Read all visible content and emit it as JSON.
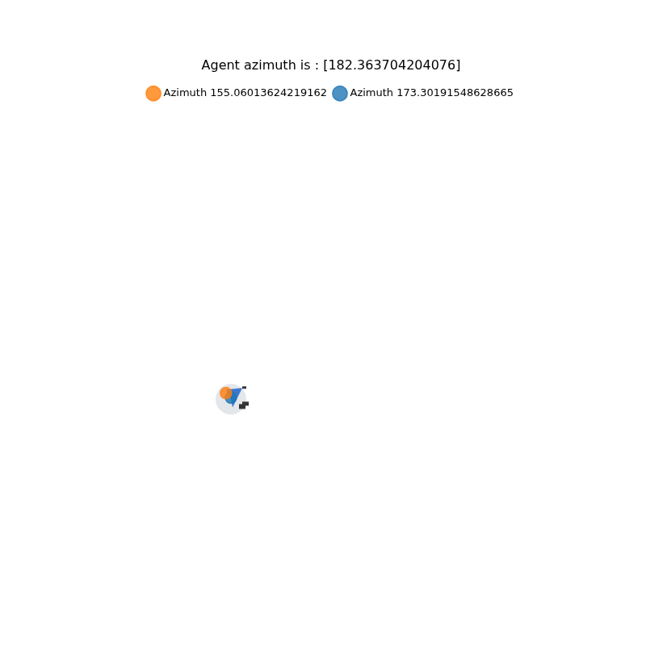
{
  "chart_data": {
    "type": "line",
    "title": "Agent azimuth is : [182.363704204076]",
    "xlim": [
      0,
      1
    ],
    "ylim": [
      0,
      1
    ],
    "grid": false,
    "tick_labels": false,
    "legend": "top",
    "series": [
      {
        "name": "Azimuth 173.30191548628665",
        "color": "#1f77b4",
        "marker": "circle",
        "line_style": "solid",
        "x": [
          0.3
        ],
        "values": [
          0.37
        ]
      },
      {
        "name": "Azimuth 155.06013624219162",
        "color": "#ff7f0e",
        "marker": "circle",
        "line_style": "solid",
        "x": [
          0.29
        ],
        "values": [
          0.38
        ]
      }
    ]
  }
}
